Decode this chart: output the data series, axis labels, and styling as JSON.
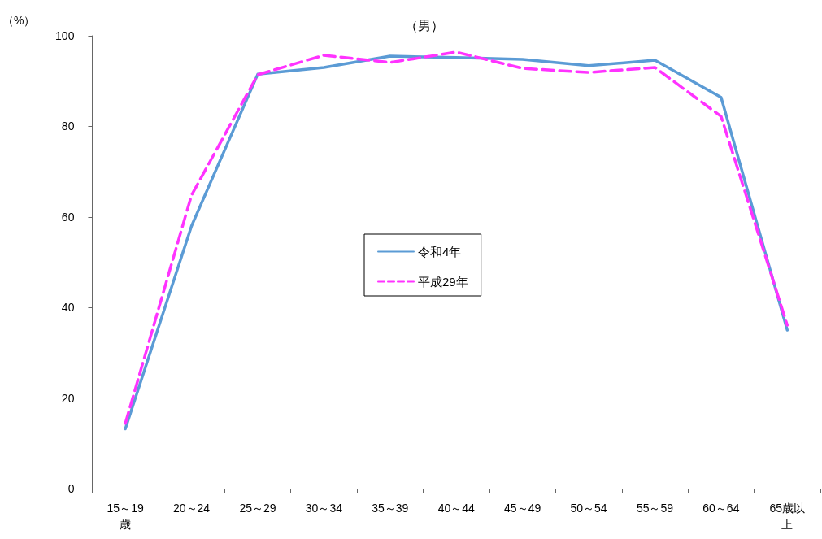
{
  "chart_data": {
    "type": "line",
    "title": "（男）",
    "ylabel": "（%）",
    "categories": [
      "15～19歳",
      "20～24",
      "25～29",
      "30～34",
      "35～39",
      "40～44",
      "45～49",
      "50～54",
      "55～59",
      "60～64",
      "65歳以上"
    ],
    "series": [
      {
        "name": "令和4年",
        "color": "#5b9bd5",
        "line_style": "solid",
        "values": [
          13.2,
          58.0,
          91.5,
          93.0,
          95.5,
          95.2,
          94.8,
          93.4,
          94.6,
          86.4,
          35.0
        ]
      },
      {
        "name": "平成29年",
        "color": "#ff33ff",
        "line_style": "dashed",
        "values": [
          14.4,
          64.8,
          91.4,
          95.7,
          94.1,
          96.4,
          92.8,
          91.9,
          93.0,
          82.2,
          36.1
        ]
      }
    ],
    "ylim": [
      0,
      100
    ],
    "yticks": [
      0,
      20,
      40,
      60,
      80,
      100
    ],
    "grid": false,
    "legend": "center",
    "marker": "none"
  }
}
